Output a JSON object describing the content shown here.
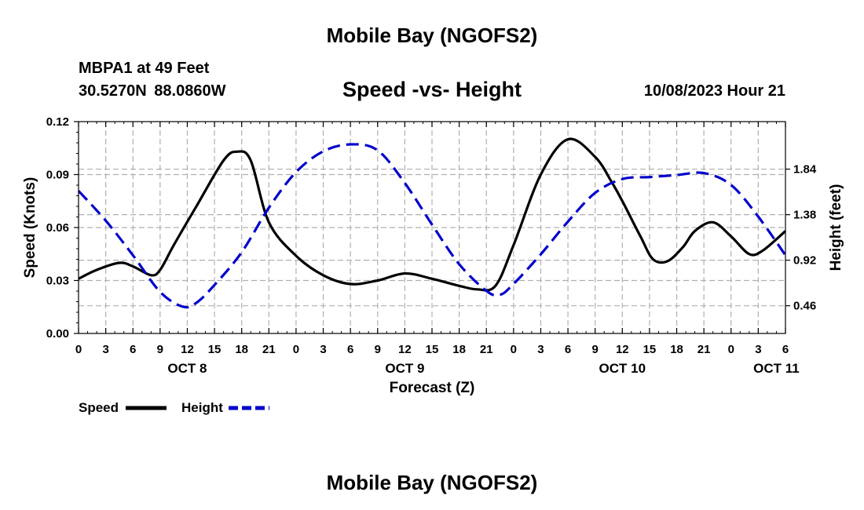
{
  "header": {
    "title": "Mobile Bay (NGOFS2)",
    "station_name": "MBPA1 at 49 Feet",
    "station_coords": "30.5270N  88.0860W",
    "plot_title": "Speed -vs- Height",
    "forecast_time": "10/08/2023 Hour 21"
  },
  "footer": {
    "title": "Mobile Bay (NGOFS2)"
  },
  "colors": {
    "speed": "#000000",
    "height": "#0000cc",
    "grid": "#b0b0b0"
  },
  "chart_data": {
    "type": "line",
    "xlabel": "Forecast (Z)",
    "ylabel_left": "Speed (Knots)",
    "ylabel_right": "Height (feet)",
    "x_unit": "hours from OCT 8 00Z",
    "xlim": [
      0,
      78
    ],
    "ylim_left": [
      0,
      0.12
    ],
    "ylim_right": [
      0.18,
      2.32
    ],
    "x_tick_values": [
      0,
      3,
      6,
      9,
      12,
      15,
      18,
      21,
      24,
      27,
      30,
      33,
      36,
      39,
      42,
      45,
      48,
      51,
      54,
      57,
      60,
      63,
      66,
      69,
      72,
      75,
      78
    ],
    "x_tick_labels": [
      "0",
      "3",
      "6",
      "9",
      "12",
      "15",
      "18",
      "21",
      "0",
      "3",
      "6",
      "9",
      "12",
      "15",
      "18",
      "21",
      "0",
      "3",
      "6",
      "9",
      "12",
      "15",
      "18",
      "21",
      "0",
      "3",
      "6"
    ],
    "date_labels": [
      {
        "x": 12,
        "label": "OCT 8"
      },
      {
        "x": 36,
        "label": "OCT 9"
      },
      {
        "x": 60,
        "label": "OCT 10"
      },
      {
        "x": 77,
        "label": "OCT 11"
      }
    ],
    "y_left_ticks": [
      0.0,
      0.03,
      0.06,
      0.09,
      0.12
    ],
    "y_left_tick_labels": [
      "0.00",
      "0.03",
      "0.06",
      "0.09",
      "0.12"
    ],
    "y_right_ticks": [
      0.46,
      0.92,
      1.38,
      1.84
    ],
    "y_right_tick_labels": [
      "0.46",
      "0.92",
      "1.38",
      "1.84"
    ],
    "series": [
      {
        "name": "Speed",
        "axis": "left",
        "style": "solid",
        "x": [
          0,
          2,
          4.5,
          6,
          8,
          9,
          10.5,
          13,
          16,
          17.5,
          19,
          21,
          24,
          27,
          30,
          33,
          36,
          39,
          42,
          44,
          46,
          48,
          51,
          54,
          57,
          58.8,
          60,
          62,
          63.4,
          65,
          66.7,
          68,
          70,
          72,
          74,
          75.5,
          78
        ],
        "values": [
          0.031,
          0.036,
          0.04,
          0.038,
          0.033,
          0.036,
          0.05,
          0.072,
          0.098,
          0.103,
          0.098,
          0.063,
          0.044,
          0.033,
          0.028,
          0.03,
          0.034,
          0.031,
          0.027,
          0.025,
          0.027,
          0.05,
          0.09,
          0.11,
          0.1,
          0.086,
          0.075,
          0.055,
          0.042,
          0.041,
          0.049,
          0.058,
          0.063,
          0.055,
          0.045,
          0.047,
          0.058
        ]
      },
      {
        "name": "Height",
        "axis": "right",
        "style": "dashed",
        "x": [
          0,
          3,
          6,
          9,
          11.5,
          13,
          15,
          18,
          21,
          24,
          27,
          30,
          33,
          36,
          39,
          42,
          45,
          46.5,
          48,
          51,
          54,
          57,
          60,
          63,
          66,
          69,
          72,
          75,
          78
        ],
        "values": [
          1.62,
          1.32,
          0.97,
          0.6,
          0.45,
          0.49,
          0.67,
          1.0,
          1.45,
          1.81,
          2.02,
          2.09,
          2.03,
          1.7,
          1.28,
          0.88,
          0.61,
          0.57,
          0.68,
          0.98,
          1.31,
          1.6,
          1.74,
          1.76,
          1.78,
          1.8,
          1.68,
          1.36,
          0.97
        ]
      }
    ],
    "legend": {
      "position": "bottom-left",
      "entries": [
        "Speed",
        "Height"
      ]
    }
  }
}
